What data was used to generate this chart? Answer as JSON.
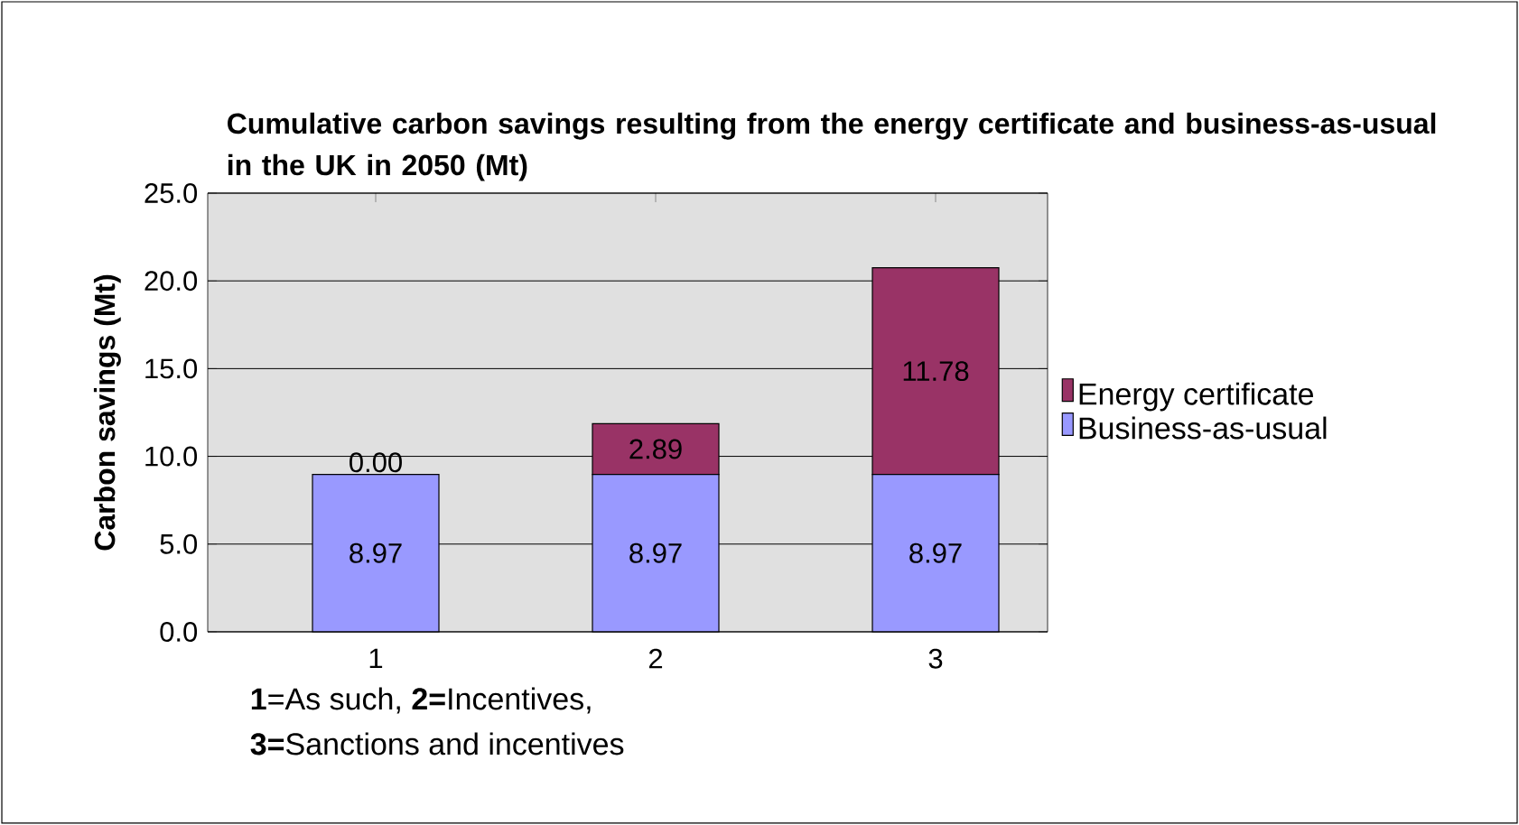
{
  "chart_data": {
    "type": "bar",
    "stacked": true,
    "title": "Cumulative carbon savings resulting from the energy certificate and business-as-usual in the UK in 2050 (Mt)",
    "ylabel": "Carbon savings (Mt)",
    "categories": [
      "1",
      "2",
      "3"
    ],
    "series": [
      {
        "name": "Business-as-usual",
        "color": "#9999ff",
        "values": [
          8.97,
          8.97,
          8.97
        ],
        "value_labels": [
          "8.97",
          "8.97",
          "8.97"
        ]
      },
      {
        "name": "Energy certificate",
        "color": "#993366",
        "values": [
          0,
          2.89,
          11.78
        ],
        "value_labels": [
          "0.00",
          "2.89",
          "11.78"
        ]
      }
    ],
    "ylim": [
      0,
      25
    ],
    "yticks": [
      {
        "value": 0,
        "label": "0.0"
      },
      {
        "value": 5,
        "label": "5.0"
      },
      {
        "value": 10,
        "label": "10.0"
      },
      {
        "value": 15,
        "label": "15.0"
      },
      {
        "value": 20,
        "label": "20.0"
      },
      {
        "value": 25,
        "label": "25.0"
      }
    ],
    "grid": "y",
    "legend": "right",
    "annotations": [
      "**1**=As such, **2=**Incentives,",
      "**3=**Sanctions and incentives"
    ]
  }
}
